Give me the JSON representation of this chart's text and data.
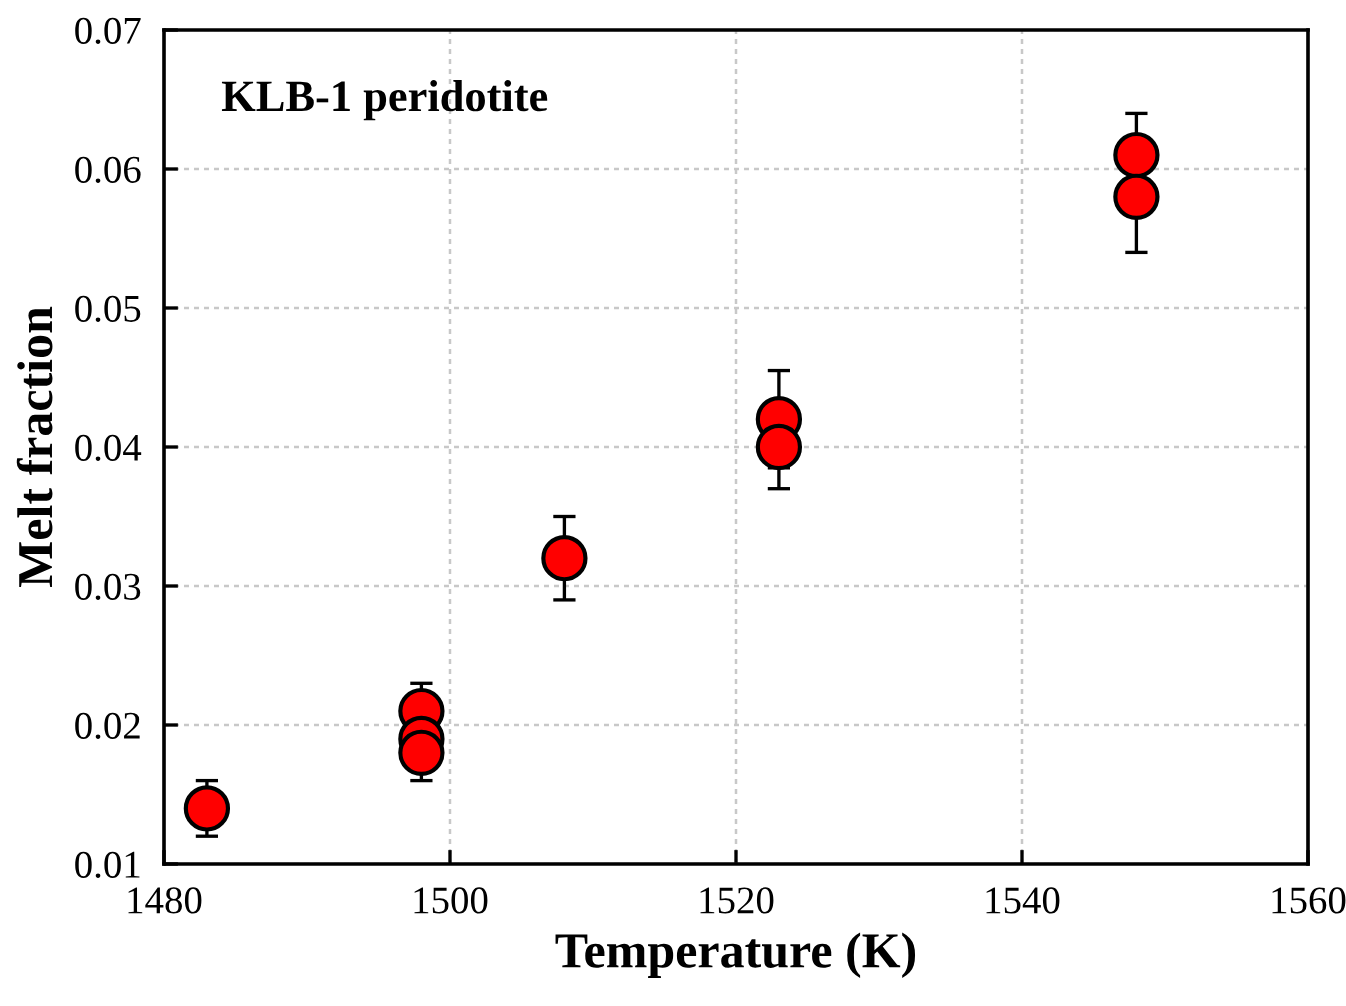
{
  "chart_data": {
    "type": "scatter",
    "xlabel": "Temperature (K)",
    "ylabel": "Melt fraction",
    "annotations": [
      "KLB-1 peridotite"
    ],
    "x": [
      1483,
      1498,
      1498,
      1498,
      1508,
      1523,
      1523,
      1548,
      1548
    ],
    "series": [
      {
        "color": "#ff0000",
        "values": [
          0.014,
          0.021,
          0.019,
          0.018,
          0.032,
          0.042,
          0.04,
          0.061,
          0.058
        ],
        "errors": [
          0.002,
          0.002,
          null,
          0.002,
          0.003,
          0.0035,
          0.003,
          0.003,
          0.004
        ]
      }
    ],
    "xlim": [
      1480,
      1560
    ],
    "xticks": [
      1480,
      1500,
      1520,
      1540,
      1560
    ],
    "ylim": [
      0.01,
      0.07
    ],
    "yticks": [
      0.01,
      0.02,
      0.03,
      0.04,
      0.05,
      0.06,
      0.07
    ],
    "grid": true,
    "marker": "circle"
  }
}
